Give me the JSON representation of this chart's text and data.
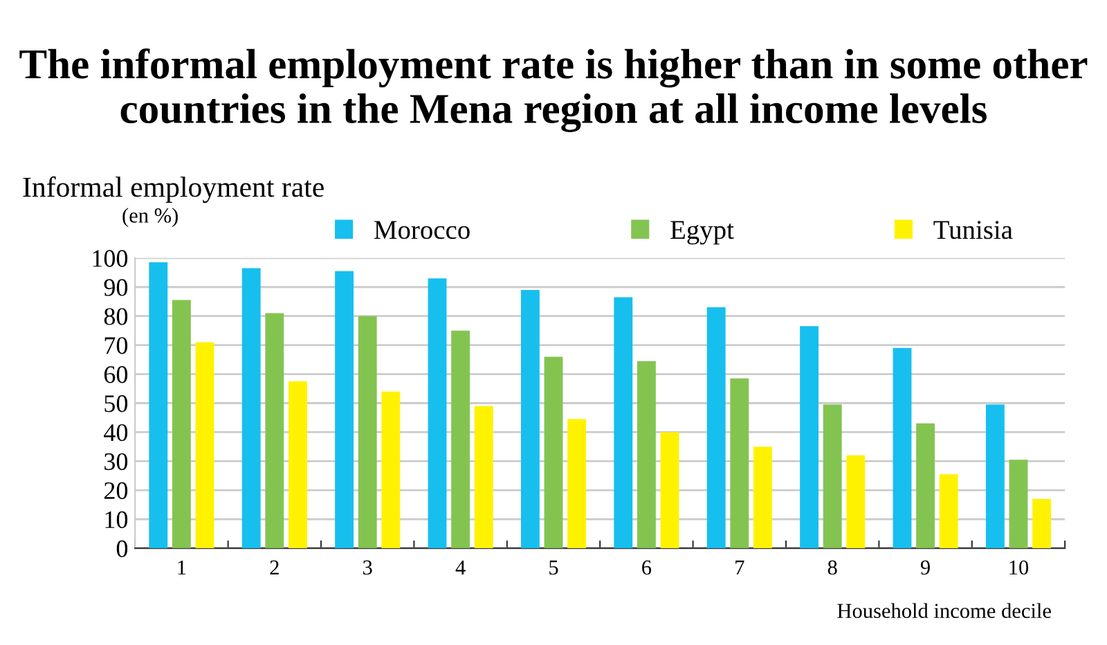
{
  "chart_data": {
    "type": "bar",
    "title": "The informal employment rate is higher than in some other countries in the Mena region at all income levels",
    "ylabel": "Informal employment rate",
    "subtitle": "(en %)",
    "xlabel": "Household income decile",
    "categories": [
      "1",
      "2",
      "3",
      "4",
      "5",
      "6",
      "7",
      "8",
      "9",
      "10"
    ],
    "series": [
      {
        "name": "Morocco",
        "color": "#17bfee",
        "values": [
          98.5,
          96.5,
          95.5,
          93,
          89,
          86.5,
          83,
          76.5,
          69,
          49.5
        ]
      },
      {
        "name": "Egypt",
        "color": "#83c451",
        "values": [
          85.5,
          81,
          80,
          75,
          66,
          64.5,
          58.5,
          49.5,
          43,
          30.5
        ]
      },
      {
        "name": "Tunisia",
        "color": "#fff200",
        "values": [
          71,
          57.5,
          54,
          49,
          44.5,
          40,
          35,
          32,
          25.5,
          17
        ]
      }
    ],
    "ylim": [
      0,
      100
    ],
    "yticks": [
      0,
      10,
      20,
      30,
      40,
      50,
      60,
      70,
      80,
      90,
      100
    ],
    "grid": "y",
    "legend": "top"
  }
}
